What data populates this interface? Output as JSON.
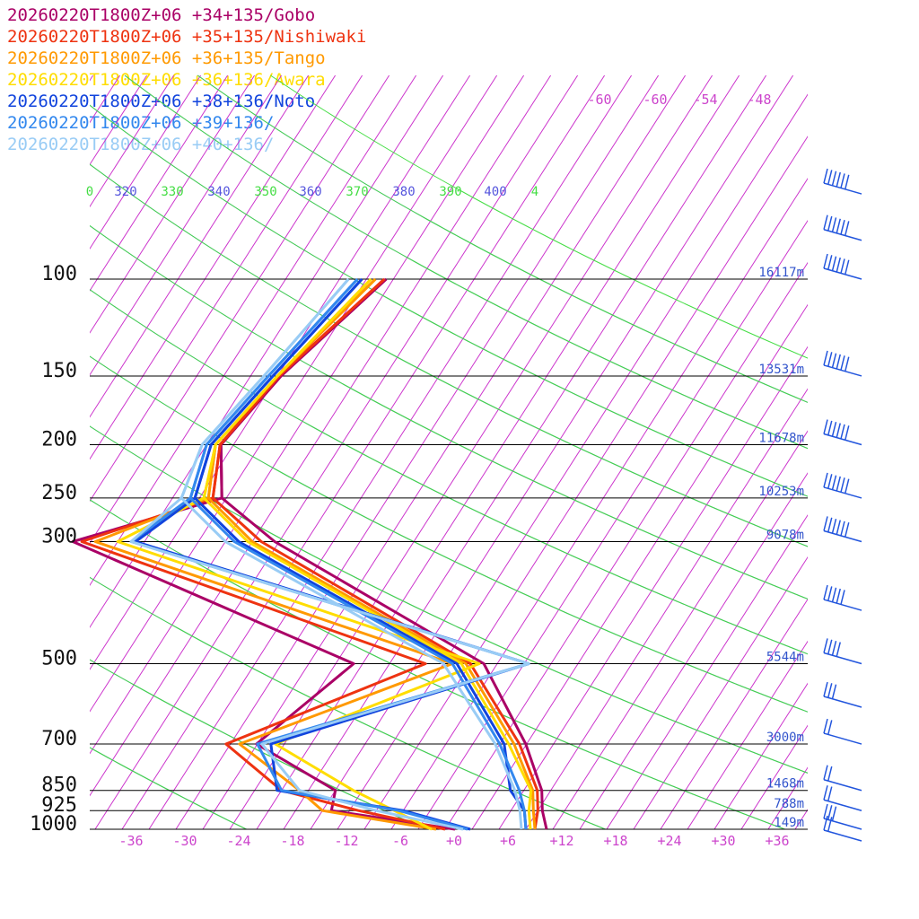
{
  "chart_data": {
    "type": "line",
    "subtype": "skew-t",
    "pressure_labels": [
      "100",
      "150",
      "200",
      "250",
      "300",
      "500",
      "700",
      "850",
      "925",
      "1000"
    ],
    "height_labels": [
      {
        "p": 100,
        "label": "16117m"
      },
      {
        "p": 150,
        "label": "13531m"
      },
      {
        "p": 200,
        "label": "11678m"
      },
      {
        "p": 250,
        "label": "10253m"
      },
      {
        "p": 300,
        "label": "9078m"
      },
      {
        "p": 500,
        "label": "5544m"
      },
      {
        "p": 700,
        "label": "3000m"
      },
      {
        "p": 850,
        "label": "1468m"
      },
      {
        "p": 925,
        "label": "788m"
      },
      {
        "p": 1000,
        "label": "149m"
      }
    ],
    "temperature_ticks": [
      "-36",
      "-30",
      "-24",
      "-18",
      "-12",
      "-6",
      "+0",
      "+6",
      "+12",
      "+18",
      "+24",
      "+30",
      "+36"
    ],
    "upper_temperature_ticks": [
      "-60",
      "-60",
      "-54",
      "-48"
    ],
    "theta_labels": [
      "0",
      "320",
      "330",
      "340",
      "350",
      "360",
      "370",
      "380",
      "390",
      "400",
      "4"
    ],
    "legend_placement": "top-left",
    "colors": {
      "isotherm": "#cc33cc",
      "isobar": "#000000",
      "dry_adiabat": "#5555dd",
      "moist_adiabat": "#44dd44",
      "height_label": "#3355cc",
      "temp_tick": "#cc44cc",
      "wind_barb": "#2255dd"
    },
    "series": [
      {
        "name": "20260220T1800Z+06 +34+135/Gobo",
        "color": "#aa0066",
        "temperature": [
          [
            100,
            -46.8
          ],
          [
            150,
            -51.6
          ],
          [
            200,
            -53.4
          ],
          [
            250,
            -49.5
          ],
          [
            300,
            -40.5
          ],
          [
            500,
            -8.5
          ],
          [
            700,
            1.9
          ],
          [
            850,
            7.0
          ],
          [
            925,
            8.5
          ],
          [
            1000,
            10.3
          ]
        ],
        "dewpoint": [
          [
            100,
            -46.8
          ],
          [
            150,
            -51.6
          ],
          [
            200,
            -53.4
          ],
          [
            250,
            -49.5
          ],
          [
            300,
            -63.0
          ],
          [
            500,
            -23.0
          ],
          [
            700,
            -28.1
          ],
          [
            850,
            -16.0
          ],
          [
            925,
            -15.0
          ],
          [
            1000,
            0.1
          ]
        ]
      },
      {
        "name": "20260220T1800Z+06 +35+135/Nishiwaki",
        "color": "#ee3311",
        "temperature": [
          [
            100,
            -47.0
          ],
          [
            150,
            -51.8
          ],
          [
            200,
            -53.5
          ],
          [
            250,
            -50.5
          ],
          [
            300,
            -42.0
          ],
          [
            500,
            -10.0
          ],
          [
            700,
            1.2
          ],
          [
            850,
            6.5
          ],
          [
            925,
            8.0
          ],
          [
            1000,
            9.0
          ]
        ],
        "dewpoint": [
          [
            100,
            -47.0
          ],
          [
            150,
            -51.8
          ],
          [
            200,
            -53.5
          ],
          [
            250,
            -50.5
          ],
          [
            300,
            -62.0
          ],
          [
            500,
            -15.0
          ],
          [
            700,
            -31.5
          ],
          [
            850,
            -22.0
          ],
          [
            925,
            -12.0
          ],
          [
            1000,
            -1.0
          ]
        ]
      },
      {
        "name": "20260220T1800Z+06 +36+135/Tango",
        "color": "#ff9900",
        "temperature": [
          [
            100,
            -48.0
          ],
          [
            150,
            -52.0
          ],
          [
            200,
            -54.0
          ],
          [
            250,
            -51.0
          ],
          [
            300,
            -43.0
          ],
          [
            500,
            -10.5
          ],
          [
            700,
            0.6
          ],
          [
            850,
            6.0
          ],
          [
            925,
            7.5
          ],
          [
            1000,
            9.0
          ]
        ],
        "dewpoint": [
          [
            100,
            -48.0
          ],
          [
            150,
            -52.0
          ],
          [
            200,
            -54.0
          ],
          [
            250,
            -51.0
          ],
          [
            300,
            -60.5
          ],
          [
            500,
            -12.0
          ],
          [
            700,
            -30.0
          ],
          [
            850,
            -20.0
          ],
          [
            925,
            -16.0
          ],
          [
            1000,
            -2.0
          ]
        ]
      },
      {
        "name": "20260220T1800Z+06 +36+136/Awara",
        "color": "#ffdd00",
        "temperature": [
          [
            100,
            -48.5
          ],
          [
            150,
            -52.0
          ],
          [
            200,
            -54.0
          ],
          [
            250,
            -51.5
          ],
          [
            300,
            -43.5
          ],
          [
            500,
            -11.0
          ],
          [
            700,
            0.0
          ],
          [
            850,
            5.8
          ],
          [
            925,
            7.0
          ],
          [
            1000,
            8.5
          ]
        ],
        "dewpoint": [
          [
            100,
            -48.5
          ],
          [
            150,
            -52.0
          ],
          [
            200,
            -54.0
          ],
          [
            250,
            -51.5
          ],
          [
            300,
            -58.0
          ],
          [
            500,
            -9.0
          ],
          [
            700,
            -26.0
          ],
          [
            850,
            -14.0
          ],
          [
            925,
            -8.0
          ],
          [
            1000,
            -2.5
          ]
        ]
      },
      {
        "name": "20260220T1800Z+06 +38+136/Noto",
        "color": "#1144dd",
        "temperature": [
          [
            100,
            -49.5
          ],
          [
            150,
            -52.5
          ],
          [
            200,
            -54.5
          ],
          [
            250,
            -52.5
          ],
          [
            300,
            -44.5
          ],
          [
            500,
            -11.5
          ],
          [
            700,
            -0.5
          ],
          [
            850,
            3.5
          ],
          [
            925,
            6.5
          ],
          [
            1000,
            8.0
          ]
        ],
        "dewpoint": [
          [
            100,
            -49.5
          ],
          [
            150,
            -52.5
          ],
          [
            200,
            -54.5
          ],
          [
            250,
            -52.5
          ],
          [
            300,
            -56.0
          ],
          [
            500,
            -3.5
          ],
          [
            700,
            -26.5
          ],
          [
            850,
            -22.5
          ],
          [
            925,
            -7.0
          ],
          [
            1000,
            1.8
          ]
        ]
      },
      {
        "name": "20260220T1800Z+06 +39+136/",
        "color": "#3388ee",
        "temperature": [
          [
            100,
            -50.0
          ],
          [
            150,
            -53.0
          ],
          [
            200,
            -55.0
          ],
          [
            250,
            -53.0
          ],
          [
            300,
            -45.0
          ],
          [
            500,
            -12.0
          ],
          [
            700,
            -1.0
          ],
          [
            850,
            4.5
          ],
          [
            925,
            6.5
          ],
          [
            1000,
            8.0
          ]
        ],
        "dewpoint": [
          [
            100,
            -50.0
          ],
          [
            150,
            -53.0
          ],
          [
            200,
            -55.0
          ],
          [
            250,
            -53.0
          ],
          [
            300,
            -56.5
          ],
          [
            500,
            -3.5
          ],
          [
            700,
            -28.0
          ],
          [
            850,
            -22.0
          ],
          [
            925,
            -7.5
          ],
          [
            1000,
            1.5
          ]
        ]
      },
      {
        "name": "20260220T1800Z+06 +40+136/",
        "color": "#99ccf5",
        "temperature": [
          [
            100,
            -51.0
          ],
          [
            150,
            -53.5
          ],
          [
            200,
            -55.5
          ],
          [
            250,
            -54.0
          ],
          [
            300,
            -46.0
          ],
          [
            500,
            -13.0
          ],
          [
            700,
            -1.5
          ],
          [
            850,
            4.0
          ],
          [
            925,
            6.0
          ],
          [
            1000,
            7.5
          ]
        ],
        "dewpoint": [
          [
            100,
            -51.0
          ],
          [
            150,
            -53.5
          ],
          [
            200,
            -55.5
          ],
          [
            250,
            -54.0
          ],
          [
            300,
            -56.5
          ],
          [
            500,
            -3.5
          ],
          [
            700,
            -27.5
          ],
          [
            850,
            -20.0
          ],
          [
            925,
            -10.0
          ],
          [
            1000,
            1.0
          ]
        ]
      }
    ],
    "wind_barbs": [
      {
        "p": 70,
        "speed_kt": 60,
        "dir": 270
      },
      {
        "p": 85,
        "speed_kt": 70,
        "dir": 270
      },
      {
        "p": 100,
        "speed_kt": 55,
        "dir": 270
      },
      {
        "p": 150,
        "speed_kt": 60,
        "dir": 270
      },
      {
        "p": 200,
        "speed_kt": 75,
        "dir": 270
      },
      {
        "p": 250,
        "speed_kt": 80,
        "dir": 270
      },
      {
        "p": 300,
        "speed_kt": 55,
        "dir": 270
      },
      {
        "p": 400,
        "speed_kt": 45,
        "dir": 270
      },
      {
        "p": 500,
        "speed_kt": 35,
        "dir": 270
      },
      {
        "p": 600,
        "speed_kt": 30,
        "dir": 270
      },
      {
        "p": 700,
        "speed_kt": 20,
        "dir": 270
      },
      {
        "p": 850,
        "speed_kt": 20,
        "dir": 250
      },
      {
        "p": 925,
        "speed_kt": 20,
        "dir": 240
      },
      {
        "p": 1000,
        "speed_kt": 25,
        "dir": 220
      },
      {
        "p": 1050,
        "speed_kt": 20,
        "dir": 220
      }
    ]
  }
}
